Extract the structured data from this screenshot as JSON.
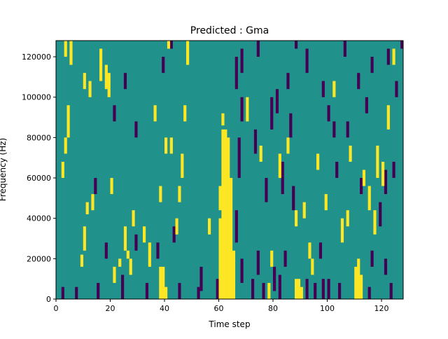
{
  "chart_data": {
    "type": "heatmap",
    "title": "Predicted : Gma",
    "xlabel": "Time step",
    "ylabel": "Frequency (Hz)",
    "xlim": [
      0,
      128
    ],
    "ylim": [
      0,
      128000
    ],
    "x_ticks": [
      0,
      20,
      40,
      60,
      80,
      100,
      120
    ],
    "x_tick_labels": [
      "0",
      "20",
      "40",
      "60",
      "80",
      "100",
      "120"
    ],
    "y_ticks": [
      0,
      20000,
      40000,
      60000,
      80000,
      100000,
      120000
    ],
    "y_tick_labels": [
      "0",
      "20000",
      "40000",
      "60000",
      "80000",
      "100000",
      "120000"
    ],
    "colormap": "viridis",
    "values_present": [
      -1,
      0,
      1
    ],
    "colors": {
      "low": "#440154",
      "mid": "#21918c",
      "high": "#fde725"
    },
    "background_value": 0,
    "freq_bins": 64,
    "bin_height_hz": 2000,
    "high_cells": [
      [
        61,
        0,
        42
      ],
      [
        62,
        0,
        42
      ],
      [
        63,
        0,
        40
      ],
      [
        64,
        0,
        30
      ],
      [
        65,
        0,
        12
      ],
      [
        60,
        0,
        20
      ],
      [
        60,
        22,
        28
      ],
      [
        61,
        43,
        46
      ],
      [
        38,
        0,
        8
      ],
      [
        39,
        0,
        8
      ],
      [
        40,
        0,
        3
      ],
      [
        78,
        0,
        4
      ],
      [
        88,
        0,
        5
      ],
      [
        89,
        0,
        5
      ],
      [
        90,
        0,
        3
      ],
      [
        110,
        0,
        8
      ],
      [
        111,
        0,
        10
      ],
      [
        112,
        0,
        6
      ],
      [
        2,
        30,
        34
      ],
      [
        3,
        36,
        40
      ],
      [
        5,
        58,
        64
      ],
      [
        3,
        60,
        68
      ],
      [
        4,
        40,
        48
      ],
      [
        9,
        8,
        11
      ],
      [
        10,
        12,
        18
      ],
      [
        11,
        21,
        24
      ],
      [
        13,
        22,
        26
      ],
      [
        10,
        52,
        56
      ],
      [
        12,
        50,
        54
      ],
      [
        16,
        54,
        62
      ],
      [
        18,
        52,
        58
      ],
      [
        19,
        50,
        56
      ],
      [
        20,
        26,
        30
      ],
      [
        21,
        4,
        8
      ],
      [
        23,
        8,
        10
      ],
      [
        25,
        12,
        18
      ],
      [
        26,
        10,
        12
      ],
      [
        27,
        6,
        10
      ],
      [
        28,
        18,
        22
      ],
      [
        32,
        14,
        18
      ],
      [
        34,
        8,
        14
      ],
      [
        36,
        44,
        48
      ],
      [
        38,
        24,
        28
      ],
      [
        40,
        36,
        40
      ],
      [
        42,
        36,
        40
      ],
      [
        41,
        62,
        66
      ],
      [
        44,
        16,
        20
      ],
      [
        45,
        24,
        28
      ],
      [
        46,
        30,
        36
      ],
      [
        47,
        44,
        48
      ],
      [
        48,
        58,
        64
      ],
      [
        50,
        66,
        70
      ],
      [
        51,
        80,
        84
      ],
      [
        53,
        70,
        76
      ],
      [
        54,
        82,
        86
      ],
      [
        55,
        94,
        98
      ],
      [
        58,
        74,
        78
      ],
      [
        59,
        68,
        72
      ],
      [
        56,
        16,
        20
      ],
      [
        70,
        44,
        50
      ],
      [
        75,
        34,
        38
      ],
      [
        79,
        8,
        12
      ],
      [
        82,
        30,
        36
      ],
      [
        85,
        36,
        40
      ],
      [
        88,
        18,
        22
      ],
      [
        91,
        20,
        24
      ],
      [
        93,
        10,
        14
      ],
      [
        94,
        6,
        10
      ],
      [
        96,
        32,
        36
      ],
      [
        99,
        22,
        26
      ],
      [
        102,
        50,
        54
      ],
      [
        105,
        14,
        20
      ],
      [
        107,
        18,
        22
      ],
      [
        108,
        34,
        38
      ],
      [
        113,
        28,
        32
      ],
      [
        115,
        22,
        28
      ],
      [
        117,
        16,
        22
      ],
      [
        118,
        30,
        38
      ],
      [
        120,
        28,
        34
      ],
      [
        122,
        42,
        48
      ],
      [
        124,
        58,
        62
      ],
      [
        126,
        70,
        74
      ],
      [
        22,
        100,
        104
      ],
      [
        30,
        92,
        96
      ],
      [
        35,
        86,
        90
      ],
      [
        44,
        108,
        112
      ],
      [
        48,
        100,
        104
      ],
      [
        57,
        114,
        118
      ],
      [
        66,
        96,
        100
      ],
      [
        72,
        104,
        108
      ],
      [
        84,
        90,
        94
      ],
      [
        90,
        82,
        86
      ],
      [
        96,
        76,
        80
      ],
      [
        100,
        112,
        116
      ],
      [
        104,
        100,
        104
      ],
      [
        110,
        88,
        92
      ],
      [
        114,
        108,
        112
      ],
      [
        119,
        116,
        120
      ],
      [
        28,
        120,
        124
      ],
      [
        36,
        118,
        122
      ],
      [
        50,
        110,
        114
      ],
      [
        62,
        124,
        128
      ],
      [
        76,
        122,
        126
      ],
      [
        88,
        116,
        120
      ]
    ],
    "low_cells": [
      [
        2,
        0,
        3
      ],
      [
        7,
        0,
        3
      ],
      [
        15,
        0,
        4
      ],
      [
        24,
        0,
        6
      ],
      [
        33,
        0,
        4
      ],
      [
        45,
        0,
        4
      ],
      [
        52,
        0,
        3
      ],
      [
        59,
        0,
        5
      ],
      [
        72,
        0,
        5
      ],
      [
        76,
        0,
        4
      ],
      [
        82,
        0,
        6
      ],
      [
        92,
        0,
        5
      ],
      [
        95,
        0,
        4
      ],
      [
        98,
        0,
        5
      ],
      [
        100,
        0,
        5
      ],
      [
        104,
        0,
        4
      ],
      [
        115,
        0,
        3
      ],
      [
        123,
        0,
        4
      ],
      [
        53,
        2,
        8
      ],
      [
        68,
        4,
        10
      ],
      [
        74,
        6,
        12
      ],
      [
        80,
        2,
        8
      ],
      [
        84,
        8,
        12
      ],
      [
        97,
        10,
        14
      ],
      [
        116,
        8,
        12
      ],
      [
        121,
        6,
        10
      ],
      [
        18,
        10,
        14
      ],
      [
        29,
        12,
        16
      ],
      [
        37,
        10,
        14
      ],
      [
        43,
        14,
        18
      ],
      [
        66,
        14,
        22
      ],
      [
        67,
        30,
        40
      ],
      [
        68,
        44,
        50
      ],
      [
        73,
        36,
        42
      ],
      [
        77,
        24,
        30
      ],
      [
        79,
        42,
        50
      ],
      [
        81,
        46,
        52
      ],
      [
        83,
        26,
        34
      ],
      [
        86,
        40,
        46
      ],
      [
        87,
        22,
        28
      ],
      [
        103,
        30,
        34
      ],
      [
        107,
        40,
        44
      ],
      [
        112,
        26,
        30
      ],
      [
        119,
        18,
        24
      ],
      [
        121,
        26,
        32
      ],
      [
        124,
        30,
        34
      ],
      [
        66,
        52,
        60
      ],
      [
        68,
        56,
        62
      ],
      [
        70,
        64,
        68
      ],
      [
        72,
        70,
        76
      ],
      [
        74,
        60,
        66
      ],
      [
        76,
        74,
        80
      ],
      [
        78,
        66,
        72
      ],
      [
        80,
        84,
        88
      ],
      [
        82,
        76,
        80
      ],
      [
        85,
        52,
        56
      ],
      [
        88,
        62,
        66
      ],
      [
        90,
        68,
        74
      ],
      [
        92,
        56,
        62
      ],
      [
        96,
        64,
        70
      ],
      [
        98,
        50,
        54
      ],
      [
        100,
        44,
        48
      ],
      [
        102,
        40,
        44
      ],
      [
        106,
        60,
        64
      ],
      [
        108,
        70,
        74
      ],
      [
        111,
        52,
        56
      ],
      [
        114,
        46,
        50
      ],
      [
        116,
        56,
        60
      ],
      [
        118,
        74,
        78
      ],
      [
        120,
        66,
        72
      ],
      [
        122,
        58,
        62
      ],
      [
        125,
        50,
        54
      ],
      [
        127,
        62,
        68
      ],
      [
        14,
        26,
        30
      ],
      [
        21,
        44,
        48
      ],
      [
        25,
        52,
        56
      ],
      [
        29,
        40,
        44
      ],
      [
        31,
        70,
        74
      ],
      [
        33,
        78,
        82
      ],
      [
        39,
        56,
        60
      ],
      [
        42,
        62,
        66
      ],
      [
        47,
        84,
        88
      ],
      [
        50,
        74,
        78
      ],
      [
        5,
        104,
        108
      ],
      [
        8,
        116,
        120
      ],
      [
        17,
        96,
        100
      ],
      [
        19,
        108,
        112
      ],
      [
        24,
        124,
        128
      ],
      [
        27,
        112,
        116
      ],
      [
        34,
        98,
        102
      ],
      [
        40,
        106,
        110
      ],
      [
        46,
        114,
        118
      ],
      [
        52,
        120,
        124
      ],
      [
        56,
        110,
        114
      ],
      [
        64,
        108,
        112
      ],
      [
        70,
        100,
        104
      ],
      [
        74,
        114,
        118
      ],
      [
        82,
        104,
        108
      ],
      [
        86,
        112,
        116
      ],
      [
        92,
        96,
        100
      ],
      [
        97,
        118,
        122
      ],
      [
        102,
        106,
        110
      ],
      [
        106,
        92,
        96
      ],
      [
        112,
        114,
        118
      ],
      [
        116,
        102,
        106
      ],
      [
        120,
        110,
        114
      ],
      [
        126,
        96,
        100
      ]
    ]
  }
}
